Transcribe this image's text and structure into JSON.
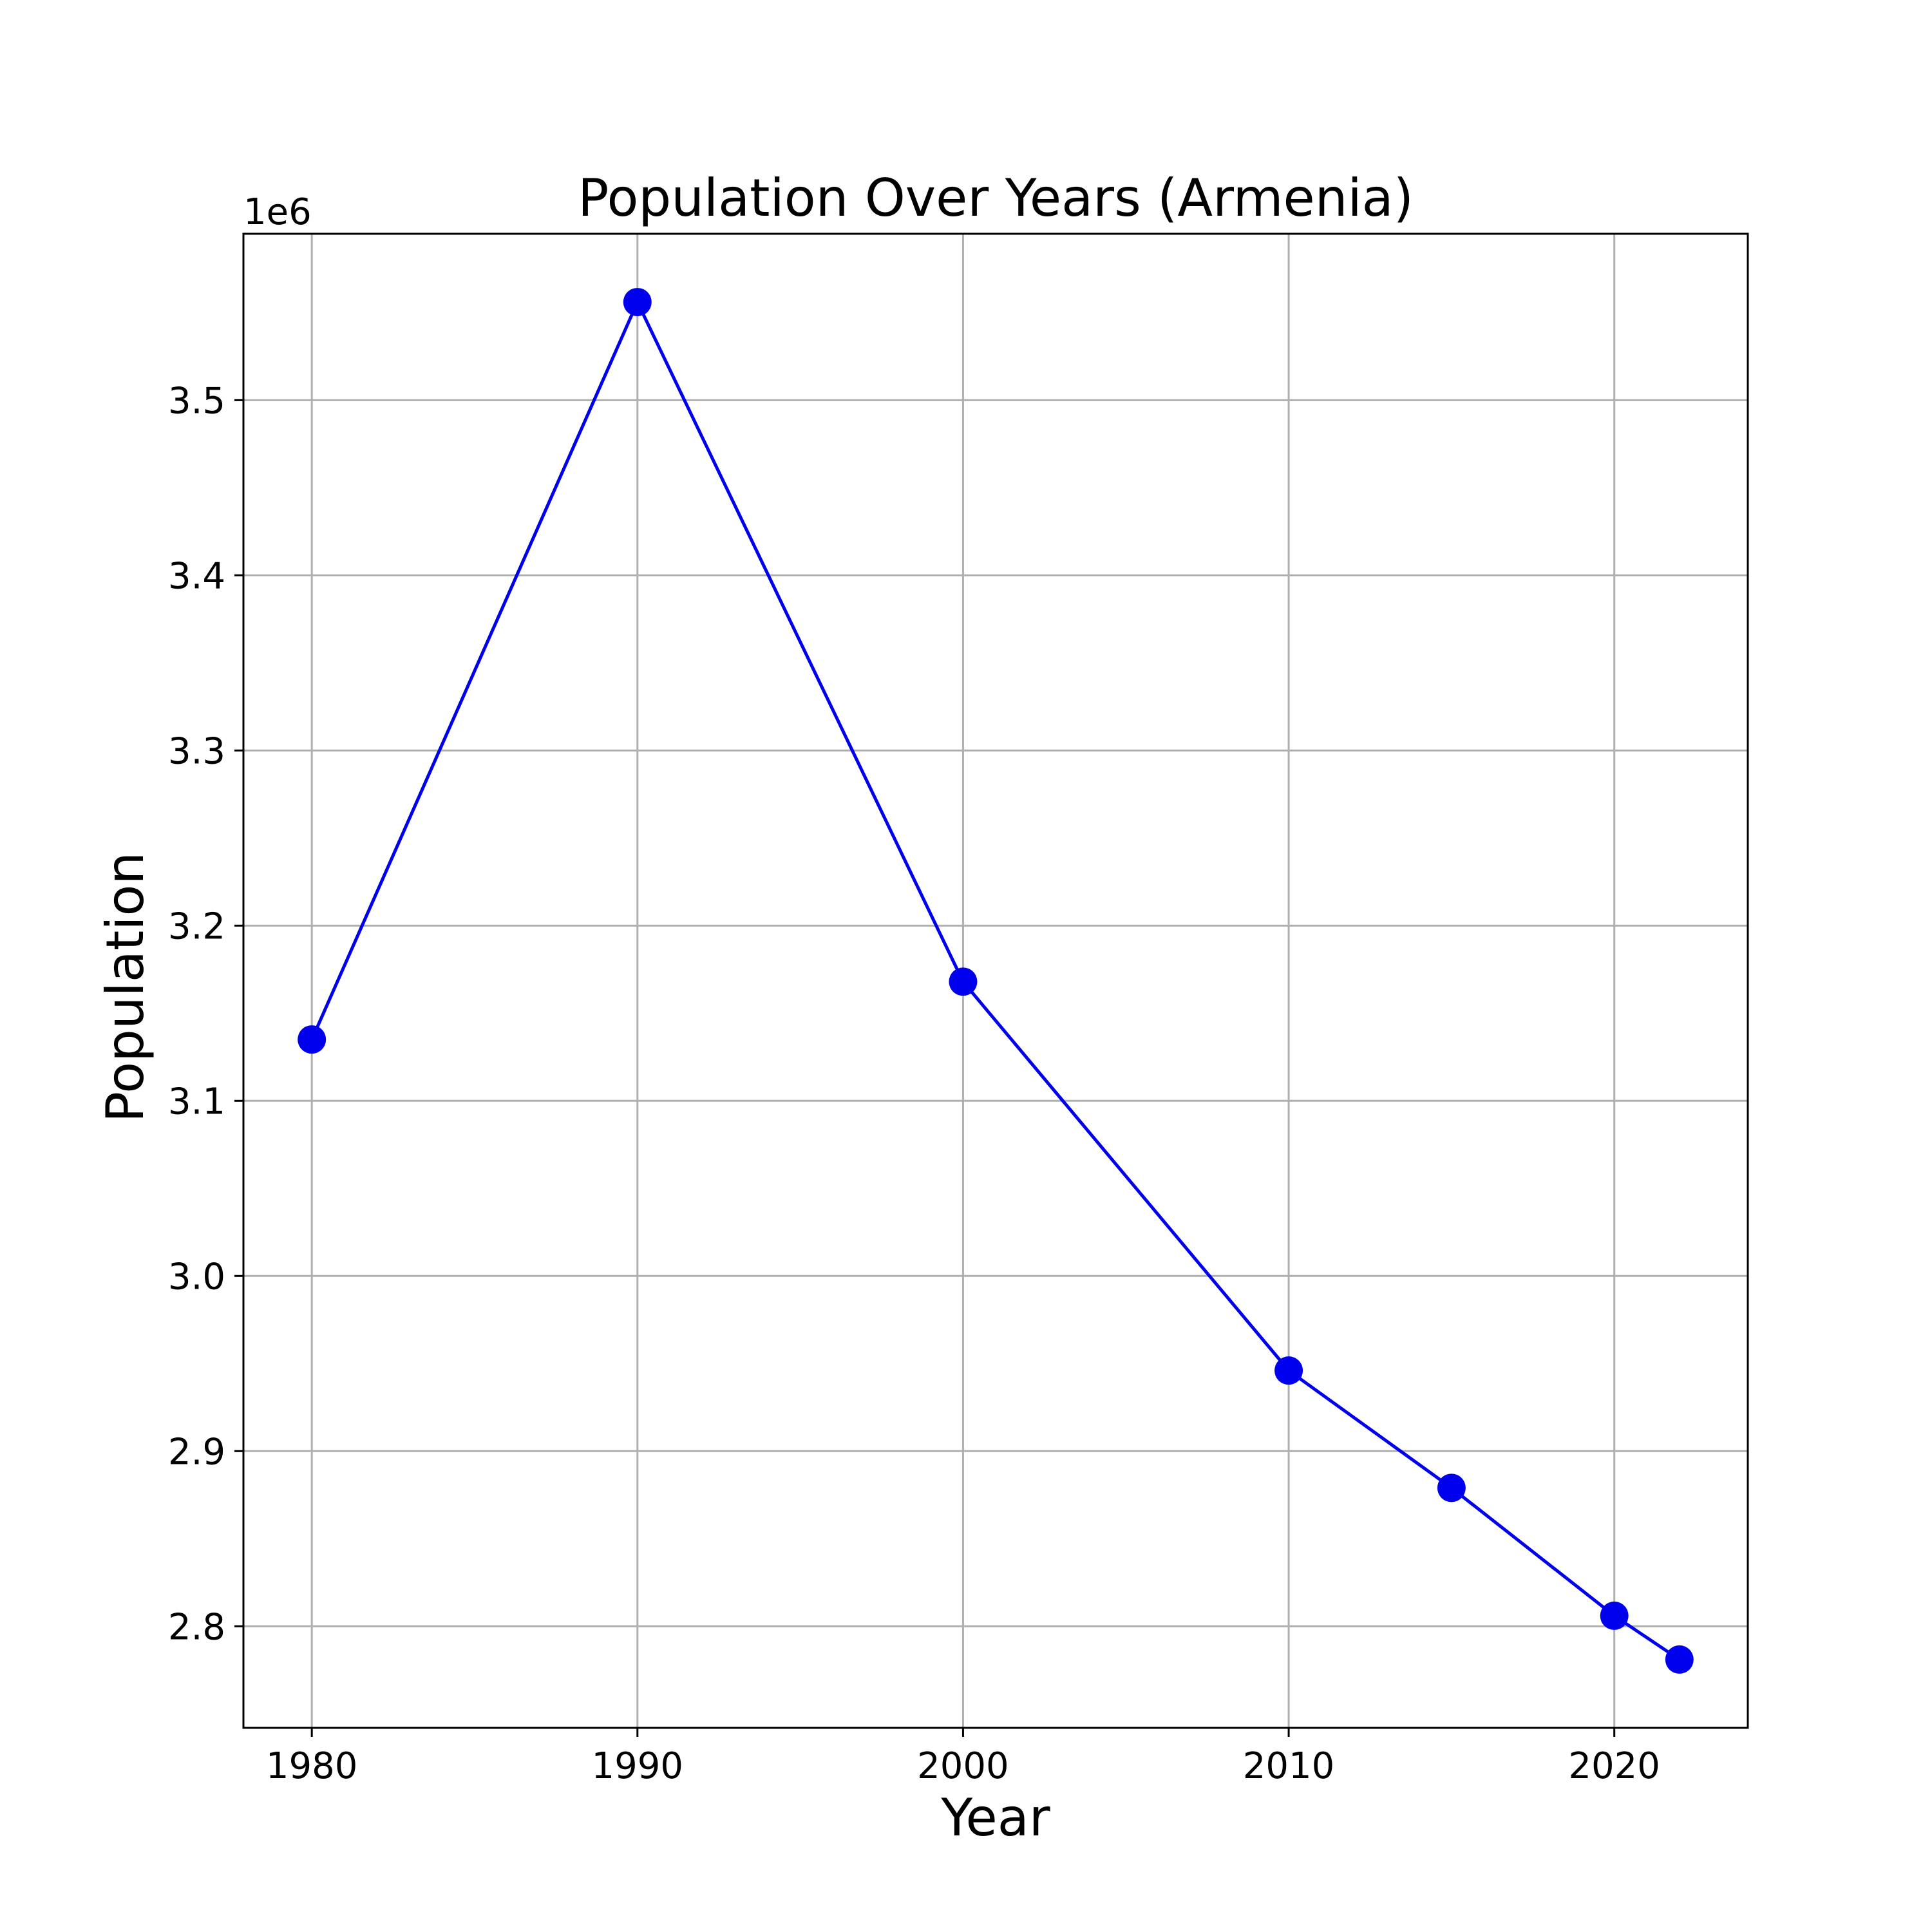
{
  "chart_data": {
    "type": "line",
    "title": "Population Over Years (Armenia)",
    "xlabel": "Year",
    "ylabel": "Population",
    "y_offset_label": "1e6",
    "x": [
      1980,
      1990,
      2000,
      2010,
      2015,
      2020,
      2022
    ],
    "series": [
      {
        "values": [
          3135000,
          3556000,
          3168000,
          2946000,
          2879000,
          2806000,
          2781000
        ],
        "color": "#0000ee"
      }
    ],
    "xlim": [
      1977.9,
      2024.1
    ],
    "ylim": [
      2742000,
      3595000
    ],
    "xticks": [
      1980,
      1990,
      2000,
      2010,
      2020
    ],
    "xtick_labels": [
      "1980",
      "1990",
      "2000",
      "2010",
      "2020"
    ],
    "yticks": [
      2800000,
      2900000,
      3000000,
      3100000,
      3200000,
      3300000,
      3400000,
      3500000
    ],
    "ytick_labels": [
      "2.8",
      "2.9",
      "3.0",
      "3.1",
      "3.2",
      "3.3",
      "3.4",
      "3.5"
    ],
    "grid": true,
    "marker": "circle"
  }
}
